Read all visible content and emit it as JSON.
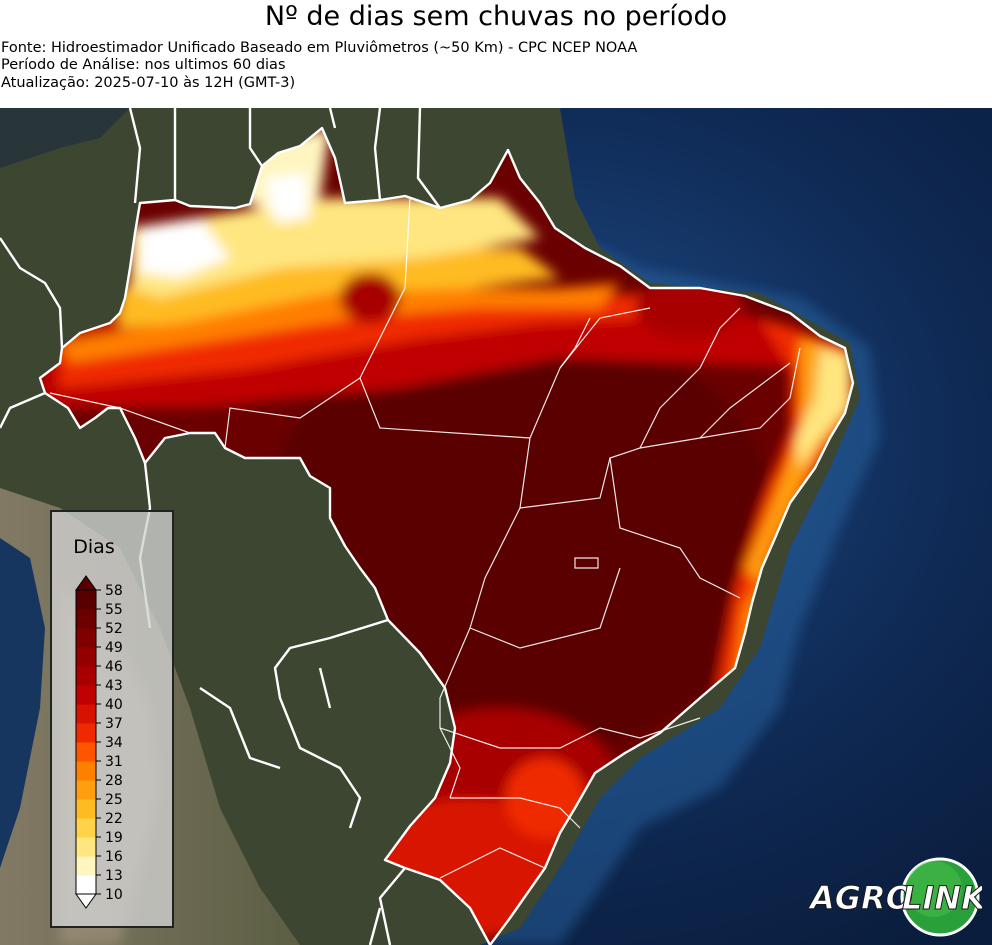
{
  "header": {
    "title": "Nº de dias sem chuvas no período",
    "source": "Fonte: Hidroestimador Unificado Baseado em Pluviômetros (~50 Km) - CPC NCEP NOAA",
    "period": "Período de Análise: nos ultimos 60 dias",
    "updated": "Atualização: 2025-07-10 às 12H (GMT-3)"
  },
  "legend": {
    "title": "Dias",
    "ticks": [
      "58",
      "55",
      "52",
      "49",
      "46",
      "43",
      "40",
      "37",
      "34",
      "31",
      "28",
      "25",
      "22",
      "19",
      "16",
      "13",
      "10"
    ],
    "colors": [
      "#ffffff",
      "#fff5c0",
      "#ffe680",
      "#ffd24a",
      "#ffbb22",
      "#ff9f10",
      "#ff7f00",
      "#ff5500",
      "#f02a00",
      "#d81200",
      "#c00000",
      "#a80000",
      "#940000",
      "#800000",
      "#6c0000",
      "#580000"
    ]
  },
  "colors": {
    "ocean": "#0f2a55",
    "land": "#3f4a32",
    "borders": "#ffffff"
  },
  "logo": {
    "text_left": "AGRO",
    "text_right": "LINK"
  }
}
